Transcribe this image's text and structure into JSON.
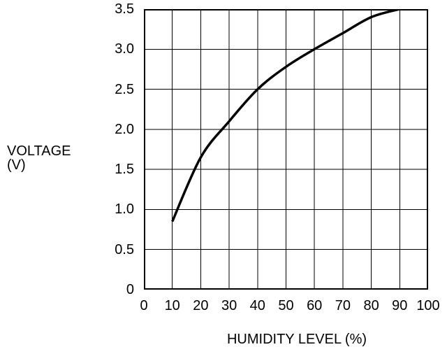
{
  "labels": {
    "y_axis_title_line1": "VOLTAGE",
    "y_axis_title_line2": "(V)",
    "x_axis_title": "HUMIDITY LEVEL (%)"
  },
  "colors": {
    "background": "#ffffff",
    "line": "#000000",
    "grid": "#000000",
    "text": "#000000"
  },
  "chart_data": {
    "type": "line",
    "title": "",
    "xlabel": "HUMIDITY LEVEL (%)",
    "ylabel": "VOLTAGE (V)",
    "xlim": [
      0,
      100
    ],
    "ylim": [
      0,
      3.5
    ],
    "grid": true,
    "legend": false,
    "x_ticks": [
      0,
      10,
      20,
      30,
      40,
      50,
      60,
      70,
      80,
      90,
      100
    ],
    "x_tick_labels": [
      "0",
      "10",
      "20",
      "30",
      "40",
      "50",
      "60",
      "70",
      "80",
      "90",
      "100"
    ],
    "y_ticks": [
      0,
      0.5,
      1.0,
      1.5,
      2.0,
      2.5,
      3.0,
      3.5
    ],
    "y_tick_labels": [
      "0",
      "0.5",
      "1.0",
      "1.5",
      "2.0",
      "2.5",
      "3.0",
      "3.5"
    ],
    "series": [
      {
        "x": [
          10,
          20,
          30,
          40,
          50,
          60,
          70,
          80,
          90
        ],
        "y": [
          0.85,
          1.65,
          2.1,
          2.5,
          2.78,
          3.0,
          3.2,
          3.4,
          3.5
        ],
        "color": "#000000",
        "stroke_width": 3.5
      }
    ]
  }
}
